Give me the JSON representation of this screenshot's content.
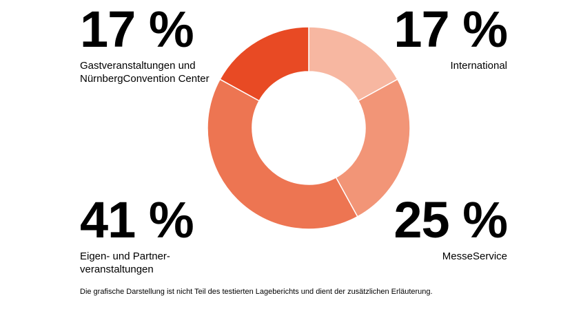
{
  "chart_data": {
    "type": "pie",
    "variant": "donut",
    "legend_placement": "corners",
    "slices": [
      {
        "value": 17,
        "value_label": "17 %",
        "label": "International",
        "color": "#f7b7a1"
      },
      {
        "value": 25,
        "value_label": "25 %",
        "label": "MesseService",
        "color": "#f29577"
      },
      {
        "value": 41,
        "value_label": "41 %",
        "label": "Eigen- und Partnerveranstaltungen",
        "label_lines": [
          "Eigen- und Partner-",
          "veranstaltungen"
        ],
        "color": "#ed7552"
      },
      {
        "value": 17,
        "value_label": "17 %",
        "label": "Gastveranstaltungen und NürnbergConvention Center",
        "label_lines": [
          "Gastveranstaltungen und",
          "NürnbergConvention Center"
        ],
        "color": "#e84a24"
      }
    ]
  },
  "footnote": "Die grafische Darstellung ist nicht Teil des testierten Lageberichts und dient der zusätzlichen Erläuterung."
}
